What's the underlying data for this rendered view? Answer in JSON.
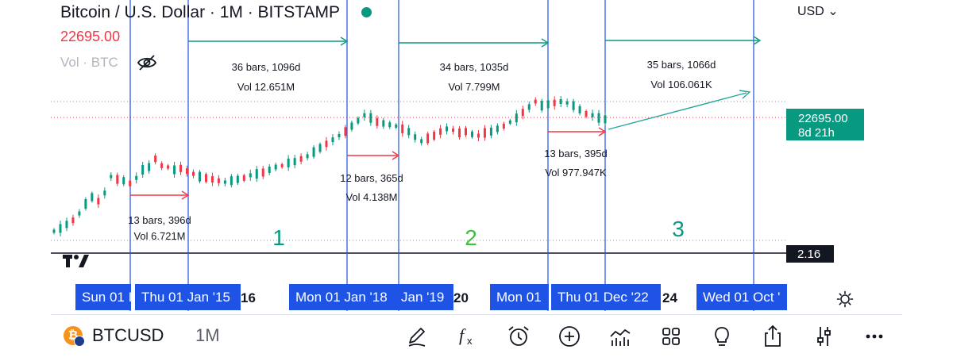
{
  "header": {
    "title": "Bitcoin / U.S. Dollar · 1M · BITSTAMP",
    "last_price": "22695.00",
    "volume_label": "Vol · BTC",
    "currency": "USD",
    "status_color": "#089981"
  },
  "price_scale": {
    "price_label": "22695.00",
    "countdown": "8d 21h",
    "volume_label": "2.16"
  },
  "time_axis": {
    "ticks": [
      "16",
      "20",
      "24"
    ],
    "labels": [
      "Sun 01 I",
      "Thu 01 Jan '15",
      "Mon 01 Jan '18",
      "Jan '19",
      "Mon 01",
      "Thu 01 Dec '22",
      "Wed 01 Oct '"
    ]
  },
  "bottom_toolbar": {
    "symbol": "BTCUSD",
    "interval": "1M",
    "symbol_icon_letter": "₿",
    "tools": [
      "pencil-icon",
      "fx-icon",
      "alarm-icon",
      "plus-icon",
      "indicators-icon",
      "grid-icon",
      "lightbulb-icon",
      "share-icon",
      "settings-icon",
      "more-icon"
    ]
  },
  "chart_data": {
    "type": "candlestick",
    "symbol": "BTCUSD",
    "interval": "1M",
    "exchange": "BITSTAMP",
    "last_price": 22695.0,
    "colors": {
      "up": "#089981",
      "down": "#f23645",
      "marker_line": "#1e53e5",
      "projection": "#26a69a"
    },
    "cycle_labels": [
      "1",
      "2",
      "3"
    ],
    "measurements": [
      {
        "text": [
          "13 bars, 396d",
          "Vol 6.721M"
        ],
        "color": "#f23645"
      },
      {
        "text": [
          "36 bars, 1096d",
          "Vol 12.651M"
        ],
        "color": "#089981"
      },
      {
        "text": [
          "12 bars, 365d",
          "Vol 4.138M"
        ],
        "color": "#f23645"
      },
      {
        "text": [
          "34 bars, 1035d",
          "Vol 7.799M"
        ],
        "color": "#089981"
      },
      {
        "text": [
          "13 bars, 395d",
          "Vol 977.947K"
        ],
        "color": "#f23645"
      },
      {
        "text": [
          "35 bars, 1066d",
          "Vol 106.061K"
        ],
        "color": "#089981"
      }
    ],
    "candles_up": [
      1,
      1,
      1,
      0,
      1,
      1,
      1,
      0,
      1,
      1,
      0,
      1,
      0,
      1,
      1,
      1,
      0,
      0,
      0,
      1,
      0,
      0,
      0,
      1,
      0,
      0,
      0,
      1,
      1,
      1,
      0,
      1,
      1,
      0,
      1,
      1,
      0,
      1,
      1,
      0,
      1,
      1,
      1,
      0,
      1,
      1,
      0,
      1,
      1,
      1,
      1,
      0,
      1,
      1,
      1,
      0,
      1,
      1,
      1,
      0,
      0,
      0,
      1,
      0,
      0,
      0,
      1,
      0,
      0,
      1,
      1,
      0,
      1,
      1,
      0,
      1,
      0,
      1,
      1,
      0,
      1,
      1,
      1,
      1,
      0,
      1,
      1,
      1,
      0,
      1,
      0,
      1,
      1,
      1,
      0,
      0,
      0,
      1,
      0,
      1,
      0,
      0,
      0,
      0,
      1,
      0,
      0,
      0,
      0,
      1,
      0,
      1
    ],
    "candles_path": [
      0.05,
      0.07,
      0.1,
      0.13,
      0.18,
      0.25,
      0.3,
      0.27,
      0.33,
      0.45,
      0.43,
      0.42,
      0.4,
      0.44,
      0.5,
      0.52,
      0.58,
      0.53,
      0.52,
      0.5,
      0.51,
      0.49,
      0.47,
      0.45,
      0.44,
      0.43,
      0.42,
      0.41,
      0.42,
      0.43,
      0.44,
      0.46,
      0.47,
      0.48,
      0.5,
      0.52,
      0.53,
      0.55,
      0.56,
      0.58,
      0.6,
      0.63,
      0.66,
      0.69,
      0.72,
      0.75,
      0.78,
      0.82,
      0.86,
      0.9,
      0.88,
      0.85,
      0.84,
      0.83,
      0.82,
      0.8,
      0.78,
      0.74,
      0.71,
      0.73,
      0.75,
      0.78,
      0.8,
      0.79,
      0.77,
      0.78,
      0.76,
      0.75,
      0.77,
      0.78,
      0.8,
      0.82,
      0.85,
      0.88,
      0.92,
      0.96,
      1.0,
      0.97,
      0.98,
      0.99,
      1.0,
      0.99,
      0.97,
      0.94,
      0.91,
      0.9,
      0.88,
      0.87
    ]
  }
}
